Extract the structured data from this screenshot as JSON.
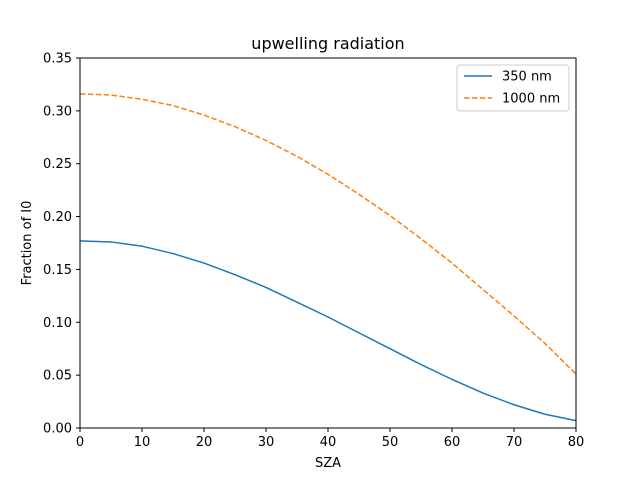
{
  "chart_data": {
    "type": "line",
    "title": "upwelling radiation",
    "xlabel": "SZA",
    "ylabel": "Fraction of I0",
    "xlim": [
      0,
      80
    ],
    "ylim": [
      0,
      0.35
    ],
    "x_ticks": [
      "0",
      "10",
      "20",
      "30",
      "40",
      "50",
      "60",
      "70",
      "80"
    ],
    "y_ticks": [
      "0.00",
      "0.05",
      "0.10",
      "0.15",
      "0.20",
      "0.25",
      "0.30",
      "0.35"
    ],
    "grid": false,
    "legend_position": "top-right",
    "x": [
      0,
      5,
      10,
      15,
      20,
      25,
      30,
      35,
      40,
      45,
      50,
      55,
      60,
      65,
      70,
      75,
      80
    ],
    "series": [
      {
        "name": "350 nm",
        "color": "#1f77b4",
        "style": "solid",
        "values": [
          0.177,
          0.176,
          0.172,
          0.165,
          0.156,
          0.145,
          0.133,
          0.119,
          0.105,
          0.09,
          0.075,
          0.06,
          0.046,
          0.033,
          0.022,
          0.013,
          0.007
        ]
      },
      {
        "name": "1000 nm",
        "color": "#ff7f0e",
        "style": "dashed",
        "values": [
          0.316,
          0.315,
          0.311,
          0.305,
          0.296,
          0.285,
          0.272,
          0.257,
          0.24,
          0.221,
          0.201,
          0.179,
          0.156,
          0.131,
          0.106,
          0.08,
          0.051
        ]
      }
    ]
  }
}
